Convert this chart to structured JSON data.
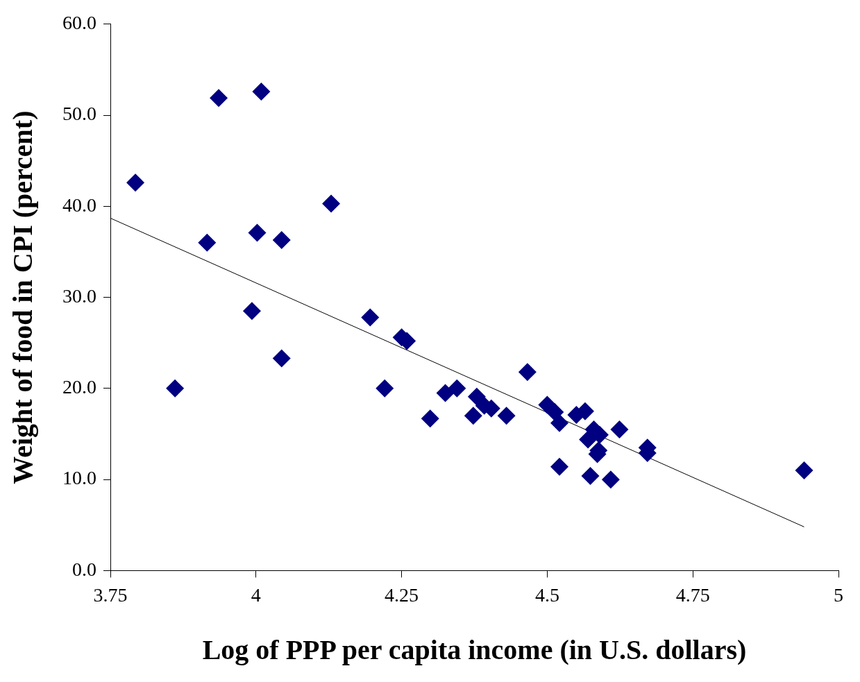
{
  "chart_data": {
    "type": "scatter",
    "xlabel": "Log of PPP per capita income (in U.S. dollars)",
    "ylabel": "Weight of food in CPI (percent)",
    "xlim": [
      3.75,
      5
    ],
    "xticks": [
      3.75,
      4,
      4.25,
      4.5,
      4.75,
      5
    ],
    "ylim": [
      0,
      60
    ],
    "yticks": [
      {
        "value": 0,
        "label": "0.0"
      },
      {
        "value": 10,
        "label": "10.0"
      },
      {
        "value": 20,
        "label": "20.0"
      },
      {
        "value": 30,
        "label": "30.0"
      },
      {
        "value": 40,
        "label": "40.0"
      },
      {
        "value": 50,
        "label": "50.0"
      },
      {
        "value": 60,
        "label": "60.0"
      }
    ],
    "grid": false,
    "legend": false,
    "marker": "diamond",
    "series": [
      {
        "color": "#000080",
        "x": [
          3.793,
          3.936,
          4.009,
          3.861,
          3.916,
          4.002,
          4.044,
          3.993,
          4.044,
          4.129,
          4.196,
          4.221,
          4.25,
          4.259,
          4.299,
          4.325,
          4.345,
          4.373,
          4.379,
          4.392,
          4.404,
          4.43,
          4.466,
          4.5,
          4.513,
          4.521,
          4.521,
          4.55,
          4.565,
          4.57,
          4.58,
          4.59,
          4.574,
          4.586,
          4.588,
          4.609,
          4.624,
          4.672,
          4.672,
          4.941
        ],
        "values": [
          42.6,
          51.9,
          52.6,
          20.0,
          36.0,
          37.1,
          36.3,
          28.5,
          23.3,
          40.3,
          27.8,
          20.0,
          25.6,
          25.2,
          16.7,
          19.5,
          20.0,
          17.0,
          19.1,
          18.1,
          17.8,
          17.0,
          21.8,
          18.2,
          17.4,
          16.2,
          11.4,
          17.1,
          17.5,
          14.4,
          15.5,
          14.9,
          10.4,
          12.8,
          13.2,
          10.0,
          15.5,
          13.5,
          12.9,
          11.0
        ]
      },
      {
        "type": "line",
        "color": "#000000",
        "x": [
          3.75,
          4.941
        ],
        "values": [
          38.7,
          4.8
        ],
        "marker": "none",
        "line_style": "solid"
      }
    ]
  }
}
